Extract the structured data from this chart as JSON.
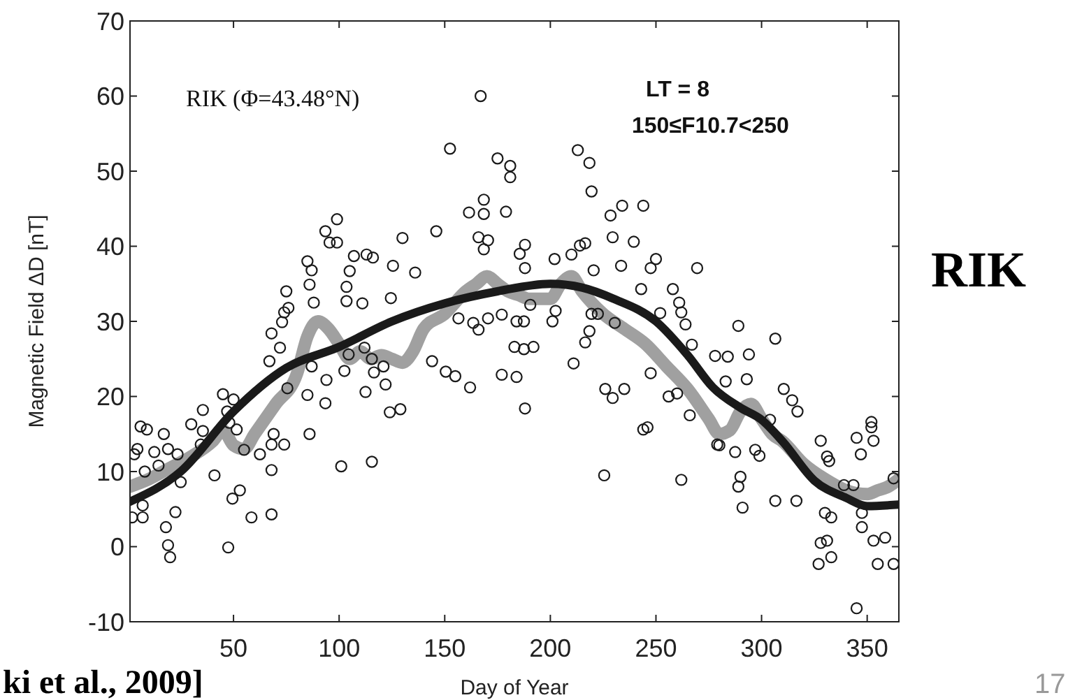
{
  "chart_data": {
    "type": "scatter",
    "xlabel": "Day of Year",
    "ylabel": "Magnetic Field  ΔD [nT]",
    "xlim": [
      1,
      365
    ],
    "xticks": [
      50,
      100,
      150,
      200,
      250,
      300,
      350
    ],
    "ylim": [
      -10,
      70
    ],
    "yticks": [
      -10,
      0,
      10,
      20,
      30,
      40,
      50,
      60,
      70
    ],
    "annotations": [
      "RIK (Φ=43.48°N)",
      "LT =  8",
      "150≤F10.7<250",
      "RIK",
      "ki et al., 2009]",
      "17"
    ],
    "series": [
      {
        "marker": "circle",
        "color": "#1a1a1a",
        "x": [
          2,
          3,
          4.5,
          6,
          9,
          8,
          7,
          7,
          12.5,
          14.5,
          17,
          19,
          18,
          19,
          20,
          22.5,
          23.5,
          25,
          30,
          35.5,
          35.5,
          34.5,
          41,
          45,
          47,
          48,
          50,
          51.5,
          49.5,
          53,
          47.5,
          55,
          58.5,
          62.5,
          67,
          68,
          68,
          68,
          68,
          69,
          72,
          73,
          74,
          75,
          76,
          74,
          75.5,
          85,
          86,
          87,
          88,
          85,
          87,
          86,
          93.5,
          95.5,
          94,
          93.5,
          99,
          99,
          101,
          102.5,
          104.5,
          103.5,
          105,
          107,
          113,
          116,
          111,
          103.5,
          112,
          112.5,
          115.5,
          116.5,
          115.5,
          121,
          122,
          124,
          129,
          125.5,
          124.5,
          130,
          136,
          144,
          146,
          150.5,
          152.5,
          155,
          156.5,
          162,
          161.5,
          163.5,
          167,
          166,
          168.5,
          168.5,
          168.5,
          170.5,
          166,
          170.5,
          175,
          181,
          181,
          179,
          177,
          184,
          183,
          177,
          184,
          185.5,
          188,
          188,
          188,
          190.5,
          192,
          187.5,
          187.5,
          202,
          202.5,
          201,
          210,
          214,
          216.5,
          211,
          213,
          218.5,
          219.5,
          220.5,
          218.5,
          216.5,
          219.5,
          222.5,
          226,
          229.5,
          235,
          225.5,
          230.5,
          229.5,
          228.5,
          234,
          244,
          239.5,
          233.5,
          247.5,
          250,
          243,
          252,
          244,
          246,
          247.5,
          256,
          260,
          262,
          266,
          258,
          261,
          262,
          264,
          269.5,
          267,
          279,
          278,
          289,
          284,
          294,
          283,
          293,
          280,
          287.5,
          290,
          289,
          291,
          304,
          297,
          299,
          306.5,
          306.5,
          310.5,
          314.5,
          317,
          316.5,
          328,
          331,
          332,
          330,
          333,
          328,
          331,
          327,
          333,
          339,
          343.5,
          345,
          347,
          352,
          352,
          353,
          347.5,
          353,
          358.5,
          355,
          362.5,
          362.5,
          345,
          347.5
        ],
        "values": [
          3.9,
          12.3,
          13,
          16,
          15.6,
          10,
          3.9,
          5.5,
          12.6,
          10.8,
          15,
          13,
          2.6,
          0.2,
          -1.4,
          4.6,
          12.3,
          8.6,
          16.3,
          18.2,
          15.4,
          13.6,
          9.5,
          20.3,
          18,
          16.5,
          19.6,
          15.6,
          6.4,
          7.5,
          -0.1,
          12.9,
          3.9,
          12.3,
          24.7,
          28.4,
          13.6,
          10.2,
          4.3,
          15,
          26.5,
          29.9,
          31.2,
          34,
          31.8,
          13.6,
          21.1,
          38,
          34.9,
          36.8,
          32.5,
          20.2,
          24,
          15,
          42,
          40.5,
          22.2,
          19.1,
          43.6,
          40.5,
          10.7,
          23.4,
          25.6,
          34.6,
          36.7,
          38.7,
          38.9,
          38.5,
          32.4,
          32.7,
          26.5,
          20.6,
          25,
          23.2,
          11.3,
          24,
          21.6,
          17.9,
          18.3,
          37.4,
          33.1,
          41.1,
          36.5,
          24.7,
          42,
          23.3,
          53,
          22.7,
          30.4,
          21.2,
          44.5,
          29.8,
          60,
          41.2,
          46.2,
          44.3,
          39.6,
          40.8,
          28.9,
          30.4,
          51.7,
          50.7,
          49.2,
          44.6,
          22.9,
          22.6,
          26.6,
          30.9,
          30,
          39,
          18.4,
          40.2,
          37.1,
          32.2,
          26.6,
          26.3,
          30,
          38.3,
          31.4,
          30,
          38.9,
          40.1,
          40.4,
          24.4,
          52.8,
          51.1,
          47.3,
          36.8,
          28.7,
          27.2,
          31,
          31,
          21,
          19.8,
          21,
          9.5,
          29.8,
          41.2,
          44.1,
          45.4,
          45.4,
          40.6,
          37.4,
          37.1,
          38.3,
          34.3,
          31.1,
          15.6,
          15.9,
          23.1,
          20,
          20.4,
          8.9,
          17.5,
          34.3,
          32.5,
          31.2,
          29.6,
          37.1,
          26.9,
          13.6,
          25.4,
          29.4,
          25.3,
          25.6,
          22,
          22.3,
          13.5,
          12.6,
          9.3,
          8,
          5.2,
          16.9,
          12.9,
          12.1,
          6.1,
          27.7,
          21,
          19.5,
          18,
          6.1,
          14.1,
          12,
          11.4,
          4.5,
          3.9,
          0.5,
          0.8,
          -2.3,
          -1.4,
          8.2,
          8.2,
          14.5,
          12.3,
          16.6,
          15.9,
          14.1,
          2.6,
          0.8,
          1.2,
          -2.3,
          -2.3,
          9.1,
          -8.2,
          4.5
        ]
      },
      {
        "type": "line",
        "line_style": "solid",
        "color": "#a0a0a0",
        "x": [
          1,
          10,
          20,
          30,
          40,
          45,
          50,
          55,
          60,
          70,
          80,
          85,
          90,
          95,
          100,
          105,
          110,
          115,
          120,
          125,
          130,
          135,
          140,
          150,
          160,
          165,
          170,
          175,
          180,
          185,
          190,
          200,
          205,
          210,
          215,
          225,
          235,
          245,
          255,
          265,
          275,
          280,
          285,
          290,
          295,
          300,
          305,
          310,
          320,
          330,
          340,
          350,
          355,
          360,
          365
        ],
        "values": [
          8,
          9,
          10.5,
          12,
          14,
          15.5,
          13.5,
          13,
          15,
          19,
          23,
          28,
          30,
          29,
          27,
          25,
          26,
          25,
          25.5,
          25,
          24.5,
          26,
          29,
          31,
          34,
          35,
          36,
          35,
          34,
          33.5,
          33,
          33,
          35,
          36,
          34,
          31,
          29,
          27,
          24,
          21,
          17,
          15,
          15.5,
          18,
          19,
          17,
          15,
          14,
          11,
          9,
          7.5,
          7,
          7.5,
          8,
          9
        ]
      },
      {
        "type": "line",
        "line_style": "solid",
        "color": "#1a1a1a",
        "x": [
          1,
          25,
          50,
          75,
          100,
          125,
          150,
          175,
          200,
          215,
          230,
          250,
          265,
          277,
          290,
          300,
          310,
          325,
          340,
          350,
          365
        ],
        "values": [
          6,
          10,
          18,
          23.8,
          26.6,
          30,
          32.4,
          34,
          35,
          34.5,
          33,
          30,
          25.5,
          21.2,
          18.5,
          16.9,
          14,
          8.8,
          6.5,
          5.4,
          5.6
        ]
      }
    ]
  }
}
